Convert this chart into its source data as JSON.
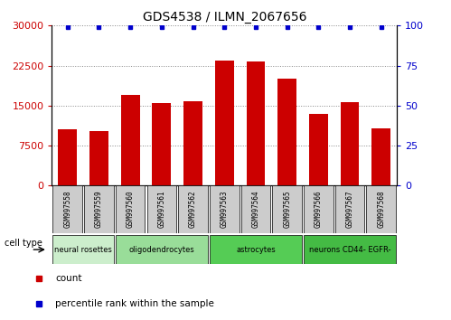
{
  "title": "GDS4538 / ILMN_2067656",
  "samples": [
    "GSM997558",
    "GSM997559",
    "GSM997560",
    "GSM997561",
    "GSM997562",
    "GSM997563",
    "GSM997564",
    "GSM997565",
    "GSM997566",
    "GSM997567",
    "GSM997568"
  ],
  "counts": [
    10500,
    10200,
    17000,
    15500,
    15800,
    23500,
    23200,
    20000,
    13500,
    15700,
    10800
  ],
  "bar_color": "#cc0000",
  "percentile_color": "#0000cc",
  "ylim_left": [
    0,
    30000
  ],
  "ylim_right": [
    0,
    100
  ],
  "yticks_left": [
    0,
    7500,
    15000,
    22500,
    30000
  ],
  "yticks_right": [
    0,
    25,
    50,
    75,
    100
  ],
  "groups": [
    {
      "label": "neural rosettes",
      "indices": [
        0,
        1
      ],
      "color": "#cceecc"
    },
    {
      "label": "oligodendrocytes",
      "indices": [
        2,
        3,
        4
      ],
      "color": "#99dd99"
    },
    {
      "label": "astrocytes",
      "indices": [
        5,
        6,
        7
      ],
      "color": "#55cc55"
    },
    {
      "label": "neurons CD44- EGFR-",
      "indices": [
        8,
        9,
        10
      ],
      "color": "#44bb44"
    }
  ],
  "sample_box_color": "#cccccc",
  "grid_color": "#888888",
  "tick_color_left": "#cc0000",
  "tick_color_right": "#0000cc",
  "legend_count_color": "#cc0000",
  "legend_pct_color": "#0000cc"
}
